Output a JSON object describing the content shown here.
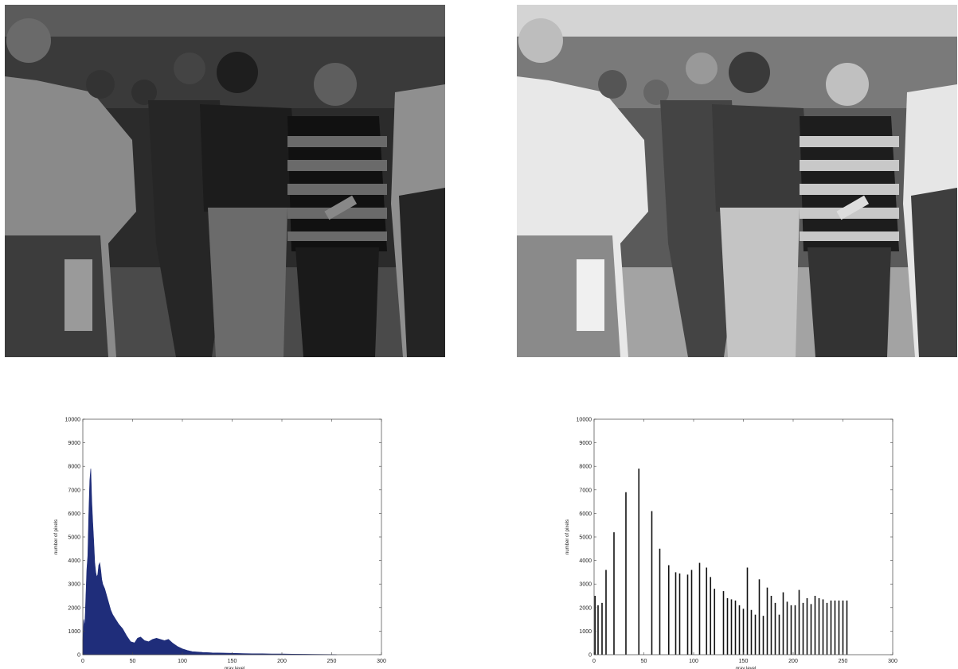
{
  "images": [
    {
      "name": "dark-original-photo",
      "tone": "dark"
    },
    {
      "name": "equalized-photo",
      "tone": "equalized"
    }
  ],
  "chart_data": [
    {
      "type": "area",
      "title": "",
      "xlabel": "gray level",
      "ylabel": "number of pixels",
      "xlim": [
        0,
        300
      ],
      "ylim": [
        0,
        10000
      ],
      "xticks": [
        "0",
        "50",
        "100",
        "150",
        "200",
        "250",
        "300"
      ],
      "yticks": [
        "0",
        "1000",
        "2000",
        "3000",
        "4000",
        "5000",
        "6000",
        "7000",
        "8000",
        "9000",
        "10000"
      ],
      "color": "#1f2d7a",
      "grid": false,
      "points": [
        [
          0,
          600
        ],
        [
          1,
          1500
        ],
        [
          2,
          1200
        ],
        [
          3,
          2400
        ],
        [
          4,
          3600
        ],
        [
          5,
          4200
        ],
        [
          6,
          6000
        ],
        [
          7,
          7400
        ],
        [
          8,
          7900
        ],
        [
          9,
          6500
        ],
        [
          10,
          5600
        ],
        [
          11,
          4800
        ],
        [
          12,
          3900
        ],
        [
          13,
          3500
        ],
        [
          14,
          3300
        ],
        [
          15,
          3400
        ],
        [
          16,
          3800
        ],
        [
          17,
          3900
        ],
        [
          18,
          3600
        ],
        [
          19,
          3200
        ],
        [
          20,
          3000
        ],
        [
          22,
          2800
        ],
        [
          24,
          2500
        ],
        [
          26,
          2200
        ],
        [
          28,
          1900
        ],
        [
          30,
          1700
        ],
        [
          33,
          1500
        ],
        [
          36,
          1300
        ],
        [
          40,
          1100
        ],
        [
          44,
          800
        ],
        [
          48,
          550
        ],
        [
          52,
          500
        ],
        [
          55,
          700
        ],
        [
          58,
          750
        ],
        [
          62,
          600
        ],
        [
          66,
          550
        ],
        [
          70,
          650
        ],
        [
          74,
          700
        ],
        [
          78,
          650
        ],
        [
          82,
          600
        ],
        [
          86,
          650
        ],
        [
          90,
          500
        ],
        [
          95,
          350
        ],
        [
          100,
          250
        ],
        [
          105,
          180
        ],
        [
          110,
          130
        ],
        [
          120,
          100
        ],
        [
          130,
          80
        ],
        [
          140,
          70
        ],
        [
          150,
          60
        ],
        [
          160,
          50
        ],
        [
          170,
          40
        ],
        [
          180,
          40
        ],
        [
          190,
          30
        ],
        [
          200,
          30
        ],
        [
          210,
          25
        ],
        [
          220,
          20
        ],
        [
          230,
          15
        ],
        [
          240,
          10
        ],
        [
          250,
          5
        ],
        [
          255,
          0
        ]
      ]
    },
    {
      "type": "bar",
      "title": "",
      "xlabel": "gray level",
      "ylabel": "number of pixels",
      "xlim": [
        0,
        300
      ],
      "ylim": [
        0,
        10000
      ],
      "xticks": [
        "0",
        "50",
        "100",
        "150",
        "200",
        "250",
        "300"
      ],
      "yticks": [
        "0",
        "1000",
        "2000",
        "3000",
        "4000",
        "5000",
        "6000",
        "7000",
        "8000",
        "9000",
        "10000"
      ],
      "color": "#111111",
      "grid": false,
      "points": [
        [
          1,
          2500
        ],
        [
          4,
          2100
        ],
        [
          8,
          2200
        ],
        [
          12,
          3600
        ],
        [
          20,
          5200
        ],
        [
          32,
          6900
        ],
        [
          45,
          7900
        ],
        [
          58,
          6100
        ],
        [
          66,
          4500
        ],
        [
          75,
          3800
        ],
        [
          82,
          3500
        ],
        [
          86,
          3450
        ],
        [
          94,
          3400
        ],
        [
          98,
          3600
        ],
        [
          106,
          3900
        ],
        [
          113,
          3700
        ],
        [
          117,
          3300
        ],
        [
          121,
          2800
        ],
        [
          130,
          2700
        ],
        [
          134,
          2400
        ],
        [
          138,
          2350
        ],
        [
          142,
          2300
        ],
        [
          146,
          2100
        ],
        [
          150,
          1950
        ],
        [
          154,
          3700
        ],
        [
          158,
          1900
        ],
        [
          162,
          1700
        ],
        [
          166,
          3200
        ],
        [
          170,
          1650
        ],
        [
          174,
          2850
        ],
        [
          178,
          2500
        ],
        [
          182,
          2200
        ],
        [
          186,
          1700
        ],
        [
          190,
          2650
        ],
        [
          194,
          2250
        ],
        [
          198,
          2100
        ],
        [
          202,
          2100
        ],
        [
          206,
          2750
        ],
        [
          210,
          2200
        ],
        [
          214,
          2400
        ],
        [
          218,
          2150
        ],
        [
          222,
          2500
        ],
        [
          226,
          2400
        ],
        [
          230,
          2350
        ],
        [
          234,
          2200
        ],
        [
          238,
          2300
        ],
        [
          242,
          2300
        ],
        [
          246,
          2300
        ],
        [
          250,
          2300
        ],
        [
          254,
          2300
        ]
      ]
    }
  ]
}
